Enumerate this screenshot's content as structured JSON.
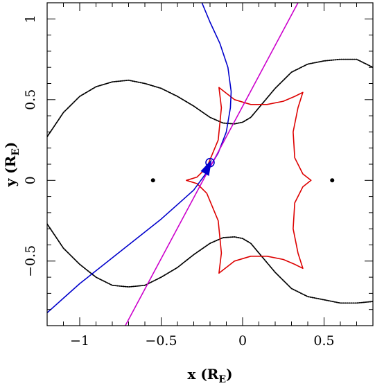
{
  "chart_data": {
    "type": "line",
    "title": "",
    "xlabel": "x (R",
    "xlabel_sub": "E",
    "xlabel_close": ")",
    "ylabel": "y (R",
    "ylabel_sub": "E",
    "ylabel_close": ")",
    "xlim": [
      -1.2,
      0.8
    ],
    "ylim": [
      -0.9,
      1.1
    ],
    "grid": false,
    "x_ticks": [
      {
        "value": -1.0,
        "label": "−1"
      },
      {
        "value": -0.5,
        "label": "−0.5"
      },
      {
        "value": 0.0,
        "label": "0"
      },
      {
        "value": 0.5,
        "label": "0.5"
      }
    ],
    "y_ticks": [
      {
        "value": -0.5,
        "label": "−0.5"
      },
      {
        "value": 0.0,
        "label": "0"
      },
      {
        "value": 0.5,
        "label": "0.5"
      },
      {
        "value": 1.0,
        "label": "1"
      }
    ],
    "colors": {
      "critical_curve": "#000000",
      "caustic": "#dd0000",
      "trajectory_curved": "#0000cc",
      "trajectory_straight": "#cc00cc",
      "source_marker": "#0000cc"
    },
    "series": [
      {
        "key": "critical-upper",
        "color": "#000000",
        "style": "dotted-outer",
        "points": [
          [
            -1.2,
            0.27
          ],
          [
            -1.1,
            0.42
          ],
          [
            -1.0,
            0.52
          ],
          [
            -0.9,
            0.58
          ],
          [
            -0.8,
            0.61
          ],
          [
            -0.7,
            0.62
          ],
          [
            -0.6,
            0.6
          ],
          [
            -0.5,
            0.57
          ],
          [
            -0.4,
            0.52
          ],
          [
            -0.3,
            0.46
          ],
          [
            -0.2,
            0.39
          ],
          [
            -0.12,
            0.355
          ],
          [
            -0.05,
            0.35
          ],
          [
            0.0,
            0.36
          ],
          [
            0.05,
            0.39
          ],
          [
            0.1,
            0.45
          ],
          [
            0.2,
            0.57
          ],
          [
            0.3,
            0.67
          ],
          [
            0.4,
            0.72
          ],
          [
            0.5,
            0.74
          ],
          [
            0.6,
            0.75
          ],
          [
            0.7,
            0.75
          ],
          [
            0.8,
            0.7
          ]
        ]
      },
      {
        "key": "critical-lower",
        "color": "#000000",
        "style": "dotted-outer",
        "points": [
          [
            -1.2,
            -0.27
          ],
          [
            -1.1,
            -0.42
          ],
          [
            -1.0,
            -0.52
          ],
          [
            -0.9,
            -0.6
          ],
          [
            -0.8,
            -0.65
          ],
          [
            -0.7,
            -0.66
          ],
          [
            -0.6,
            -0.65
          ],
          [
            -0.5,
            -0.6
          ],
          [
            -0.4,
            -0.54
          ],
          [
            -0.3,
            -0.46
          ],
          [
            -0.2,
            -0.39
          ],
          [
            -0.12,
            -0.355
          ],
          [
            -0.05,
            -0.35
          ],
          [
            0.0,
            -0.36
          ],
          [
            0.05,
            -0.39
          ],
          [
            0.1,
            -0.45
          ],
          [
            0.2,
            -0.57
          ],
          [
            0.3,
            -0.67
          ],
          [
            0.4,
            -0.72
          ],
          [
            0.5,
            -0.74
          ],
          [
            0.6,
            -0.76
          ],
          [
            0.7,
            -0.76
          ],
          [
            0.8,
            -0.75
          ]
        ]
      },
      {
        "key": "caustic",
        "color": "#dd0000",
        "style": "solid",
        "points": [
          [
            -0.145,
            0.575
          ],
          [
            -0.05,
            0.5
          ],
          [
            0.05,
            0.47
          ],
          [
            0.15,
            0.47
          ],
          [
            0.25,
            0.49
          ],
          [
            0.32,
            0.52
          ],
          [
            0.37,
            0.545
          ],
          [
            0.34,
            0.45
          ],
          [
            0.31,
            0.3
          ],
          [
            0.32,
            0.14
          ],
          [
            0.37,
            0.04
          ],
          [
            0.42,
            0.0
          ],
          [
            0.37,
            -0.04
          ],
          [
            0.32,
            -0.14
          ],
          [
            0.31,
            -0.3
          ],
          [
            0.34,
            -0.45
          ],
          [
            0.37,
            -0.545
          ],
          [
            0.32,
            -0.52
          ],
          [
            0.25,
            -0.49
          ],
          [
            0.15,
            -0.47
          ],
          [
            0.05,
            -0.47
          ],
          [
            -0.05,
            -0.5
          ],
          [
            -0.145,
            -0.575
          ],
          [
            -0.13,
            -0.45
          ],
          [
            -0.15,
            -0.25
          ],
          [
            -0.22,
            -0.08
          ],
          [
            -0.28,
            -0.02
          ],
          [
            -0.345,
            0.0
          ],
          [
            -0.28,
            0.02
          ],
          [
            -0.22,
            0.08
          ],
          [
            -0.15,
            0.25
          ],
          [
            -0.13,
            0.45
          ],
          [
            -0.145,
            0.575
          ]
        ]
      },
      {
        "key": "trajectory-curved",
        "color": "#0000cc",
        "style": "solid",
        "points": [
          [
            -1.2,
            -0.82
          ],
          [
            -1.1,
            -0.73
          ],
          [
            -1.0,
            -0.64
          ],
          [
            -0.9,
            -0.56
          ],
          [
            -0.8,
            -0.48
          ],
          [
            -0.7,
            -0.4
          ],
          [
            -0.6,
            -0.32
          ],
          [
            -0.5,
            -0.24
          ],
          [
            -0.4,
            -0.15
          ],
          [
            -0.3,
            -0.06
          ],
          [
            -0.22,
            0.05
          ],
          [
            -0.15,
            0.17
          ],
          [
            -0.1,
            0.3
          ],
          [
            -0.075,
            0.45
          ],
          [
            -0.07,
            0.55
          ],
          [
            -0.09,
            0.7
          ],
          [
            -0.14,
            0.85
          ],
          [
            -0.2,
            0.98
          ],
          [
            -0.25,
            1.1
          ]
        ]
      },
      {
        "key": "trajectory-straight",
        "color": "#cc00cc",
        "style": "solid",
        "points": [
          [
            -0.72,
            -0.9
          ],
          [
            0.34,
            1.1
          ]
        ]
      }
    ],
    "lens_positions": [
      [
        -0.55,
        0.0
      ],
      [
        0.55,
        0.0
      ]
    ],
    "source": {
      "x": -0.2,
      "y": 0.11
    },
    "direction_arrow": {
      "x": -0.215,
      "y": 0.07
    }
  }
}
